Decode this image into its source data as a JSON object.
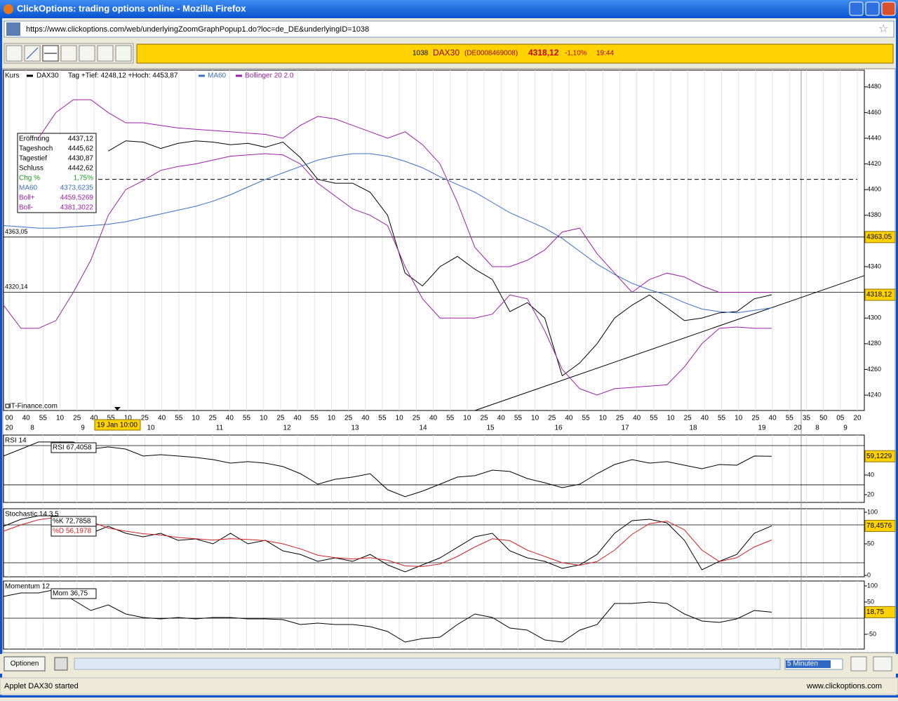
{
  "window": {
    "title": "ClickOptions: trading options online - Mozilla Firefox",
    "url": "https://www.clickoptions.com/web/underlyingZoomGraphPopup1.do?loc=de_DE&underlyingID=1038"
  },
  "ticker": {
    "id": "1038",
    "symbol": "DAX30",
    "isin": "(DE0008469008)",
    "price": "4318,12",
    "change": "-1,10%",
    "time": "19:44"
  },
  "legend": {
    "kurs": "Kurs",
    "symbol": "DAX30",
    "range": "Tag +Tief: 4248,12 +Hoch: 4453,87"
  },
  "info_box": {
    "rows": [
      [
        "Eröffnung",
        "4437,12"
      ],
      [
        "Tageshoch",
        "4445,62"
      ],
      [
        "Tagestief",
        "4430,87"
      ],
      [
        "Schluss",
        "4442,62"
      ],
      [
        "Chg %",
        "1,75%"
      ],
      [
        "MA60",
        "4373,6235"
      ],
      [
        "Boll+",
        "4459,5269"
      ],
      [
        "Boll-",
        "4381,3022"
      ]
    ]
  },
  "source": "IT-Finance.com",
  "cursor_label": "19 Jan 10:00",
  "time_axis": {
    "minutes": [
      "00",
      "40",
      "55",
      "10",
      "25",
      "40",
      "55",
      "10",
      "25",
      "40",
      "55",
      "10",
      "25",
      "40",
      "55",
      "10",
      "25",
      "40",
      "55",
      "10",
      "25",
      "40",
      "55",
      "10",
      "25",
      "40",
      "55",
      "10",
      "25",
      "40",
      "55",
      "10",
      "25",
      "40",
      "55",
      "10",
      "25",
      "40",
      "55",
      "10",
      "25",
      "40",
      "55",
      "10",
      "25",
      "40",
      "55",
      "35",
      "50",
      "05",
      "20"
    ],
    "days": [
      "20",
      "8",
      "9",
      "10",
      "11",
      "12",
      "13",
      "14",
      "15",
      "16",
      "17",
      "18",
      "19",
      "20",
      "8",
      "9"
    ]
  },
  "chart_data": [
    {
      "type": "line",
      "ylim": [
        4228,
        4493
      ],
      "yticks": [
        4240,
        4260,
        4280,
        4300,
        4320,
        4340,
        4360,
        4380,
        4400,
        4420,
        4440,
        4460,
        4480
      ],
      "series": [
        {
          "name": "DAX30",
          "color": "#000000",
          "values": [
            null,
            null,
            null,
            null,
            null,
            null,
            4430,
            4438,
            4437,
            4432,
            4436,
            4438,
            4437,
            4435,
            4436,
            4433,
            4437,
            4425,
            4408,
            4405,
            4405,
            4398,
            4380,
            4335,
            4325,
            4340,
            4348,
            4338,
            4330,
            4305,
            4312,
            4300,
            4255,
            4265,
            4280,
            4300,
            4310,
            4318,
            4308,
            4298,
            4300,
            4304,
            4305,
            4315,
            4318.12
          ]
        },
        {
          "name": "MA60",
          "color": "#3a6fc4",
          "values": [
            4372,
            4371,
            4370,
            4370,
            4371,
            4372,
            4373,
            4375,
            4378,
            4381,
            4384,
            4387,
            4391,
            4396,
            4402,
            4408,
            4413,
            4418,
            4423,
            4426,
            4428,
            4428,
            4426,
            4422,
            4417,
            4410,
            4404,
            4398,
            4390,
            4382,
            4376,
            4370,
            4362,
            4352,
            4342,
            4334,
            4327,
            4322,
            4318,
            4312,
            4307,
            4305,
            4304,
            4306,
            4308
          ]
        },
        {
          "name": "Bollinger 20 2.0",
          "color": "#9b1fa8",
          "values": [
            null,
            null,
            4440,
            4460,
            4470,
            4470,
            4460,
            4452,
            4452,
            4450,
            4448,
            4447,
            4446,
            4445,
            4444,
            4443,
            4440,
            4450,
            4457,
            4455,
            4450,
            4445,
            4440,
            4445,
            4435,
            4420,
            4390,
            4355,
            4340,
            4340,
            4345,
            4353,
            4367,
            4370,
            4350,
            4335,
            4320,
            4330,
            4335,
            4332,
            4325,
            4320,
            4320,
            4320,
            4320
          ],
          "lower": [
            4310,
            4292,
            4292,
            4298,
            4320,
            4345,
            4380,
            4400,
            4407,
            4415,
            4418,
            4420,
            4423,
            4426,
            4427,
            4428,
            4427,
            4420,
            4405,
            4395,
            4385,
            4380,
            4372,
            4340,
            4315,
            4300,
            4300,
            4300,
            4303,
            4318,
            4315,
            4290,
            4260,
            4245,
            4240,
            4245,
            4246,
            4247,
            4248,
            4262,
            4280,
            4292,
            4293,
            4292,
            4292
          ]
        }
      ],
      "hlines": [
        {
          "value": 4363.05,
          "label": "4363,05"
        },
        {
          "value": 4320.14,
          "label": "4320,14"
        }
      ],
      "dashed_line": 4408,
      "trendline": {
        "x": [
          27,
          49.3
        ],
        "y": [
          4228,
          4333
        ]
      },
      "last": {
        "value": 4318.12,
        "label": "4318,12"
      }
    },
    {
      "type": "line",
      "title": "RSI 14",
      "readouts": [
        "RSI 67,4058"
      ],
      "ylim": [
        12.1,
        80.7
      ],
      "yticks": [
        20,
        40
      ],
      "hlines": [
        30,
        70
      ],
      "series": [
        {
          "color": "#000000",
          "values": [
            59.3,
            66.4,
            73.6,
            73.6,
            73.6,
            66.4,
            68.6,
            66.4,
            59.3,
            60.7,
            59.3,
            57.9,
            55.7,
            52.1,
            53.6,
            52.1,
            48.6,
            41.4,
            30.7,
            35.7,
            37.9,
            41.4,
            25,
            17.9,
            23.6,
            30.7,
            37.9,
            39.3,
            45,
            43.6,
            36.4,
            32.1,
            27.1,
            30.7,
            41.4,
            50.7,
            55.7,
            52.1,
            53.6,
            50,
            46.4,
            50.7,
            50,
            59.3,
            59.1229
          ]
        }
      ],
      "last": {
        "value": 59.1229,
        "label": "59,1229"
      }
    },
    {
      "type": "line",
      "title": "Stochastic 14 3 5",
      "readouts": [
        "%K 72,7858",
        "%D 56,1978"
      ],
      "ylim": [
        -2.2,
        105.6
      ],
      "yticks": [
        0,
        50,
        100
      ],
      "hlines": [
        20,
        80
      ],
      "series": [
        {
          "color": "#000000",
          "values": [
            77.8,
            88.9,
            94.4,
            94.4,
            88.9,
            66.7,
            77.8,
            66.7,
            61.1,
            66.7,
            55.6,
            57.8,
            50,
            66.7,
            50,
            55.6,
            38.9,
            33.3,
            22.2,
            27.8,
            22.2,
            33.3,
            16.7,
            5.6,
            16.7,
            27.8,
            44.4,
            61.1,
            66.7,
            38.9,
            27.8,
            22.2,
            11.1,
            16.7,
            33.3,
            66.7,
            86.7,
            88.9,
            83.3,
            55.6,
            8.9,
            22.2,
            33.3,
            66.7,
            78.4576
          ]
        },
        {
          "color": "#cc2222",
          "values": [
            70,
            80,
            88,
            92,
            92,
            85,
            75,
            70,
            66,
            64,
            60,
            58,
            56,
            58,
            57,
            55,
            50,
            42,
            32,
            28,
            26,
            28,
            24,
            15,
            14,
            18,
            30,
            45,
            58,
            55,
            40,
            30,
            20,
            16,
            22,
            40,
            65,
            82,
            86,
            72,
            40,
            22,
            28,
            45,
            56.1978
          ]
        }
      ],
      "last": {
        "value": 78.4576,
        "label": "78,4576"
      }
    },
    {
      "type": "line",
      "title": "Momentum 12",
      "readouts": [
        "Mom 36,75"
      ],
      "ylim": [
        -95.7,
        115.2
      ],
      "yticks": [
        -50,
        50,
        100
      ],
      "hlines": [
        0
      ],
      "series": [
        {
          "color": "#000000",
          "values": [
            67.4,
            78.3,
            78.3,
            89.1,
            56.5,
            23.9,
            41.3,
            13,
            2.2,
            -2.2,
            2.2,
            -2.2,
            2.2,
            2.2,
            -2.2,
            -2.2,
            -4.3,
            -19.6,
            -15.2,
            -19.6,
            -19.6,
            -26.1,
            -41.3,
            -73.9,
            -63,
            -58.7,
            -19.6,
            13,
            2.2,
            -30.4,
            -37,
            -67.4,
            -73.9,
            -37,
            -19.6,
            45.7,
            45.7,
            50,
            45.7,
            13,
            -8.7,
            -13,
            -2.2,
            23.9,
            18.75
          ]
        }
      ],
      "last": {
        "value": 18.75,
        "label": "18,75"
      }
    }
  ],
  "controls": {
    "button": "Optionen",
    "interval": "5 Minuten"
  },
  "status": {
    "left": "Applet DAX30 started",
    "right": "www.clickoptions.com"
  }
}
